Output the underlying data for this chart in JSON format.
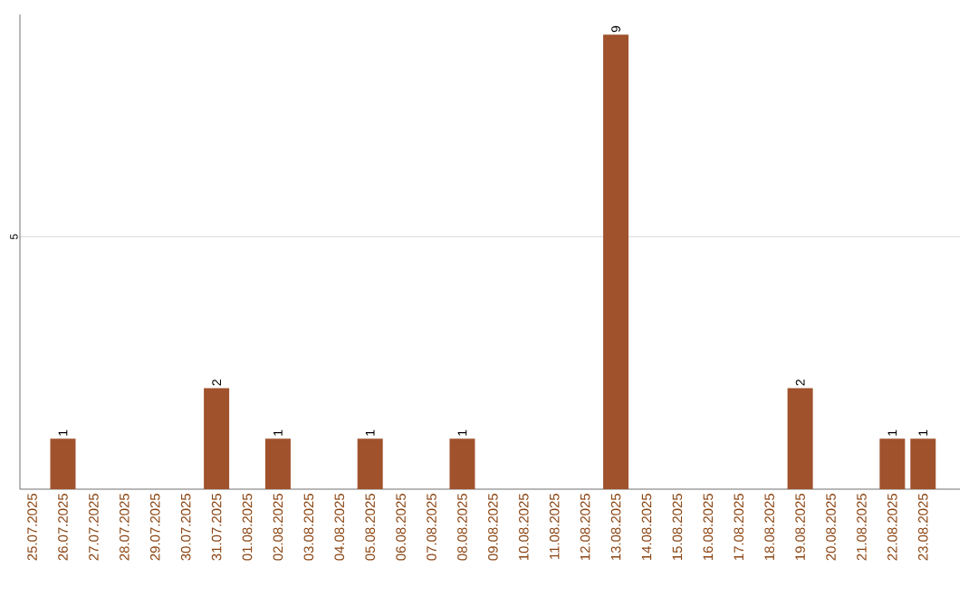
{
  "chart_data": {
    "type": "bar",
    "categories": [
      "25.07.2025",
      "26.07.2025",
      "27.07.2025",
      "28.07.2025",
      "29.07.2025",
      "30.07.2025",
      "31.07.2025",
      "01.08.2025",
      "02.08.2025",
      "03.08.2025",
      "04.08.2025",
      "05.08.2025",
      "06.08.2025",
      "07.08.2025",
      "08.08.2025",
      "09.08.2025",
      "10.08.2025",
      "11.08.2025",
      "12.08.2025",
      "13.08.2025",
      "14.08.2025",
      "15.08.2025",
      "16.08.2025",
      "17.08.2025",
      "18.08.2025",
      "19.08.2025",
      "20.08.2025",
      "21.08.2025",
      "22.08.2025",
      "23.08.2025"
    ],
    "values": [
      0,
      1,
      0,
      0,
      0,
      0,
      2,
      0,
      1,
      0,
      0,
      1,
      0,
      0,
      1,
      0,
      0,
      0,
      0,
      9,
      0,
      0,
      0,
      0,
      0,
      2,
      0,
      0,
      1,
      1
    ],
    "value_labels": [
      null,
      "1",
      null,
      null,
      null,
      null,
      "2",
      null,
      "1",
      null,
      null,
      "1",
      null,
      null,
      "1",
      null,
      null,
      null,
      null,
      "9",
      null,
      null,
      null,
      null,
      null,
      "2",
      null,
      null,
      "1",
      "1"
    ],
    "color": "#a0522d",
    "ylim": [
      0,
      9.4
    ],
    "yticks": [
      5
    ],
    "grid": "y"
  }
}
